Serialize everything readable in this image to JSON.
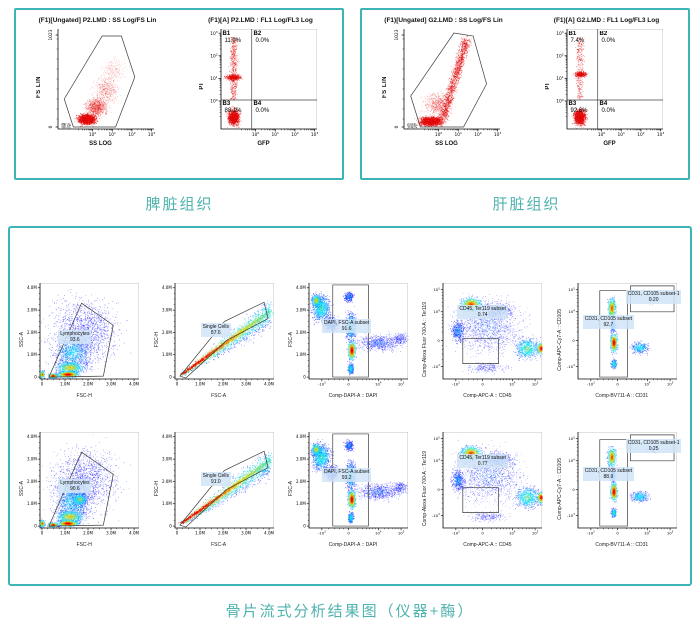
{
  "top_panels": [
    {
      "caption": "脾脏组织",
      "scatter": {
        "title": "(F1)[Ungated] P2.LMD : SS Log/FS Lin",
        "xlabel": "SS LOG",
        "ylabel": "FS LIN",
        "yticks": [
          "1023",
          "0"
        ],
        "xticks": [
          "10^0",
          "10^1",
          "10^2",
          "10^3"
        ]
      },
      "quad": {
        "title": "(F1)[A] P2.LMD : FL1 Log/FL3 Log",
        "xlabel": "GFP",
        "ylabel": "PI",
        "xticks": [
          "10^0",
          "10^1",
          "10^2",
          "10^3"
        ],
        "yticks": [
          "10^0",
          "10^1",
          "10^2",
          "10^3"
        ],
        "quadrants": [
          {
            "name": "B1",
            "value": "11.9%"
          },
          {
            "name": "B2",
            "value": "0.0%"
          },
          {
            "name": "B3",
            "value": "88.1%"
          },
          {
            "name": "B4",
            "value": "0.0%"
          }
        ]
      }
    },
    {
      "caption": "肝脏组织",
      "scatter": {
        "title": "(F1)[Ungated] G2.LMD : SS Log/FS Lin",
        "xlabel": "SS LOG",
        "ylabel": "FS LIN",
        "yticks": [
          "1023",
          "0"
        ],
        "xticks": [
          "10^0",
          "10^1",
          "10^2",
          "10^3"
        ]
      },
      "quad": {
        "title": "(F1)[A] G2.LMD : FL1 Log/FL3 Log",
        "xlabel": "GFP",
        "ylabel": "PI",
        "xticks": [
          "10^0",
          "10^1",
          "10^2",
          "10^3"
        ],
        "yticks": [
          "10^0",
          "10^1",
          "10^2",
          "10^3"
        ],
        "quadrants": [
          {
            "name": "B1",
            "value": "7.4%"
          },
          {
            "name": "B2",
            "value": "0.0%"
          },
          {
            "name": "B3",
            "value": "92.6%"
          },
          {
            "name": "B4",
            "value": "0.0%"
          }
        ]
      }
    }
  ],
  "grid": {
    "caption": "骨片流式分析结果图（仪器+酶）",
    "lin_ticks": [
      "0",
      "1.0M",
      "2.0M",
      "3.0M",
      "4.0M"
    ],
    "biex_ticks": [
      "-10^3",
      "0",
      "10^4",
      "10^5"
    ],
    "rows": [
      [
        {
          "xlabel": "FSC-H",
          "ylabel": "SSC-A",
          "gates": [
            {
              "label": "Lymphocytes",
              "value": "93.6"
            }
          ]
        },
        {
          "xlabel": "FSC-A",
          "ylabel": "FSC-H",
          "gates": [
            {
              "label": "Single Cells",
              "value": "87.6"
            }
          ]
        },
        {
          "xlabel": "Comp-DAPI-A :: DAPI",
          "ylabel": "FSC-A",
          "gates": [
            {
              "label": "DAPI, FSC-A subset",
              "value": "91.6"
            }
          ]
        },
        {
          "xlabel": "Comp-APC-A :: CD45",
          "ylabel": "Comp-Alexa Fluor 700-A :: Ter119",
          "gates": [
            {
              "label": "CD45, Ter119 subset",
              "value": "0.74"
            }
          ]
        },
        {
          "xlabel": "Comp-BV711-A :: CD31",
          "ylabel": "Comp-APC-Cy7-A :: CD105",
          "gates": [
            {
              "label": "CD31, CD105 subset",
              "value": "92.7"
            },
            {
              "label": "CD31, CD105 subset-1",
              "value": "0.20"
            }
          ]
        }
      ],
      [
        {
          "xlabel": "FSC-H",
          "ylabel": "SSC-A",
          "gates": [
            {
              "label": "Lymphocytes",
              "value": "90.6"
            }
          ]
        },
        {
          "xlabel": "FSC-A",
          "ylabel": "FSC-H",
          "gates": [
            {
              "label": "Single Cells",
              "value": "91.0"
            }
          ]
        },
        {
          "xlabel": "Comp-DAPI-A :: DAPI",
          "ylabel": "FSC-A",
          "gates": [
            {
              "label": "DAPI, FSC-A subset",
              "value": "93.2"
            }
          ]
        },
        {
          "xlabel": "Comp-APC-A :: CD45",
          "ylabel": "Comp-Alexa Fluor 700-A :: Ter119",
          "gates": [
            {
              "label": "CD45, Ter119 subset",
              "value": "0.77"
            }
          ]
        },
        {
          "xlabel": "Comp-BV711-A :: CD31",
          "ylabel": "Comp-APC-Cy7-A :: CD105",
          "gates": [
            {
              "label": "CD31, CD105 subset",
              "value": "88.9"
            },
            {
              "label": "CD31, CD105 subset-1",
              "value": "0.25"
            }
          ]
        }
      ]
    ]
  },
  "colors": {
    "panel_border": "#3db4b6",
    "caption_text": "#4fb3ae",
    "event_dot_red": "#ee1414",
    "gate_label_bg": "#d0e4f7"
  },
  "chart_data": [
    {
      "type": "scatter",
      "title": "(F1)[Ungated] P2.LMD : SS Log/FS Lin",
      "xlabel": "SS LOG",
      "ylabel": "FS LIN",
      "xscale": "log10 10^0-10^3",
      "yscale": "linear 0-1023",
      "gates": [
        {
          "name": "polygon gate A",
          "value": null
        }
      ]
    },
    {
      "type": "scatter",
      "title": "(F1)[A] P2.LMD : FL1 Log/FL3 Log",
      "xlabel": "GFP",
      "ylabel": "PI",
      "xscale": "log10 10^0-10^3",
      "yscale": "log10 10^0-10^3",
      "quadrants": {
        "B1": 11.9,
        "B2": 0.0,
        "B3": 88.1,
        "B4": 0.0
      }
    },
    {
      "type": "scatter",
      "title": "(F1)[Ungated] G2.LMD : SS Log/FS Lin",
      "xlabel": "SS LOG",
      "ylabel": "FS LIN",
      "xscale": "log10 10^0-10^3",
      "yscale": "linear 0-1023",
      "gates": [
        {
          "name": "polygon gate A",
          "value": null
        }
      ]
    },
    {
      "type": "scatter",
      "title": "(F1)[A] G2.LMD : FL1 Log/FL3 Log",
      "xlabel": "GFP",
      "ylabel": "PI",
      "xscale": "log10 10^0-10^3",
      "yscale": "log10 10^0-10^3",
      "quadrants": {
        "B1": 7.4,
        "B2": 0.0,
        "B3": 92.6,
        "B4": 0.0
      }
    },
    {
      "type": "scatter",
      "row": 1,
      "xlabel": "FSC-H",
      "ylabel": "SSC-A",
      "xscale": "linear 0-4.0M",
      "yscale": "linear 0-4.0M",
      "gates": [
        {
          "name": "Lymphocytes",
          "value": 93.6
        }
      ]
    },
    {
      "type": "scatter",
      "row": 1,
      "xlabel": "FSC-A",
      "ylabel": "FSC-H",
      "xscale": "linear 0-4.0M",
      "yscale": "linear 0-4.0M",
      "gates": [
        {
          "name": "Single Cells",
          "value": 87.6
        }
      ]
    },
    {
      "type": "scatter",
      "row": 1,
      "xlabel": "Comp-DAPI-A :: DAPI",
      "ylabel": "FSC-A",
      "xscale": "biexponential",
      "yscale": "linear 0-4.0M",
      "gates": [
        {
          "name": "DAPI, FSC-A subset",
          "value": 91.6
        }
      ]
    },
    {
      "type": "scatter",
      "row": 1,
      "xlabel": "Comp-APC-A :: CD45",
      "ylabel": "Comp-Alexa Fluor 700-A :: Ter119",
      "xscale": "biexponential",
      "yscale": "biexponential",
      "gates": [
        {
          "name": "CD45, Ter119 subset",
          "value": 0.74
        }
      ]
    },
    {
      "type": "scatter",
      "row": 1,
      "xlabel": "Comp-BV711-A :: CD31",
      "ylabel": "Comp-APC-Cy7-A :: CD105",
      "xscale": "biexponential",
      "yscale": "biexponential",
      "gates": [
        {
          "name": "CD31, CD105 subset",
          "value": 92.7
        },
        {
          "name": "CD31, CD105 subset-1",
          "value": 0.2
        }
      ]
    },
    {
      "type": "scatter",
      "row": 2,
      "xlabel": "FSC-H",
      "ylabel": "SSC-A",
      "xscale": "linear 0-4.0M",
      "yscale": "linear 0-4.0M",
      "gates": [
        {
          "name": "Lymphocytes",
          "value": 90.6
        }
      ]
    },
    {
      "type": "scatter",
      "row": 2,
      "xlabel": "FSC-A",
      "ylabel": "FSC-H",
      "xscale": "linear 0-4.0M",
      "yscale": "linear 0-4.0M",
      "gates": [
        {
          "name": "Single Cells",
          "value": 91.0
        }
      ]
    },
    {
      "type": "scatter",
      "row": 2,
      "xlabel": "Comp-DAPI-A :: DAPI",
      "ylabel": "FSC-A",
      "xscale": "biexponential",
      "yscale": "linear 0-4.0M",
      "gates": [
        {
          "name": "DAPI, FSC-A subset",
          "value": 93.2
        }
      ]
    },
    {
      "type": "scatter",
      "row": 2,
      "xlabel": "Comp-APC-A :: CD45",
      "ylabel": "Comp-Alexa Fluor 700-A :: Ter119",
      "xscale": "biexponential",
      "yscale": "biexponential",
      "gates": [
        {
          "name": "CD45, Ter119 subset",
          "value": 0.77
        }
      ]
    },
    {
      "type": "scatter",
      "row": 2,
      "xlabel": "Comp-BV711-A :: CD31",
      "ylabel": "Comp-APC-Cy7-A :: CD105",
      "xscale": "biexponential",
      "yscale": "biexponential",
      "gates": [
        {
          "name": "CD31, CD105 subset",
          "value": 88.9
        },
        {
          "name": "CD31, CD105 subset-1",
          "value": 0.25
        }
      ]
    }
  ]
}
